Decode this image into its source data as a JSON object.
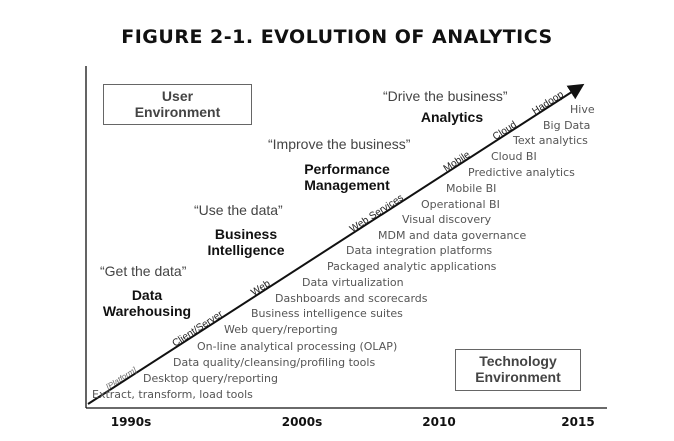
{
  "title": "FIGURE 2-1. EVOLUTION OF ANALYTICS",
  "boxes": {
    "user": [
      "User",
      "Environment"
    ],
    "technology": [
      "Technology",
      "Environment"
    ]
  },
  "eras": [
    {
      "quote": "“Get the data”",
      "heading": [
        "Data",
        "Warehousing"
      ]
    },
    {
      "quote": "“Use the data”",
      "heading": [
        "Business",
        "Intelligence"
      ]
    },
    {
      "quote": "“Improve the business”",
      "heading": [
        "Performance",
        "Management"
      ]
    },
    {
      "quote": "“Drive the business”",
      "heading": [
        "Analytics"
      ]
    }
  ],
  "platforms": [
    "[Platform]",
    "Client/Server",
    "Web",
    "Web Services",
    "Mobile",
    "Cloud",
    "Hadoop"
  ],
  "technologies": [
    "Extract, transform, load tools",
    "Desktop query/reporting",
    "Data quality/cleansing/profiling tools",
    "On-line analytical processing (OLAP)",
    "Web query/reporting",
    "Business intelligence suites",
    "Dashboards and scorecards",
    "Data virtualization",
    "Packaged analytic applications",
    "Data integration  platforms",
    "MDM and data governance",
    "Visual discovery",
    "Operational BI",
    "Mobile BI",
    "Predictive analytics",
    "Cloud BI",
    "Text analytics",
    "Big Data",
    "Hive"
  ],
  "timeline": [
    "1990s",
    "2000s",
    "2010",
    "2015"
  ]
}
